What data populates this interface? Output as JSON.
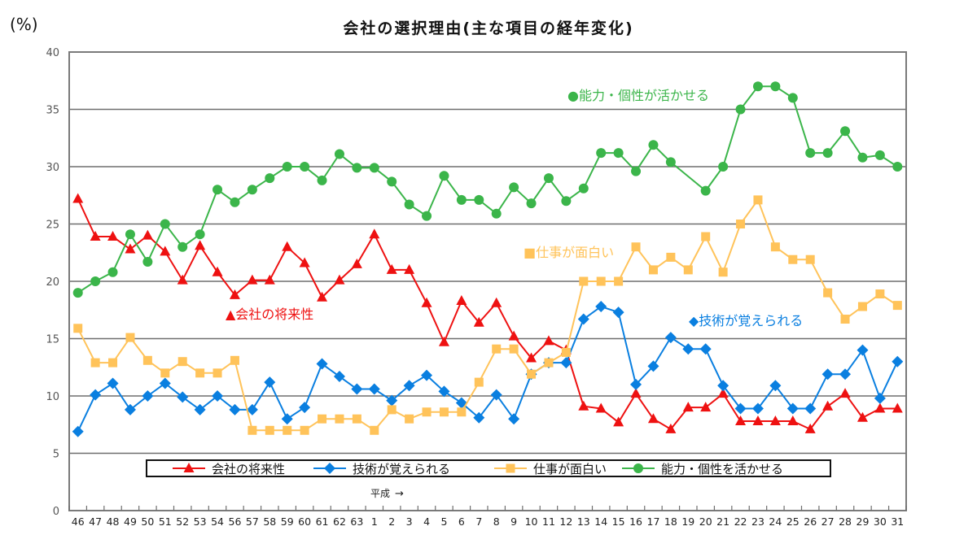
{
  "chart_data": {
    "type": "line",
    "title": "会社の選択理由(主な項目の経年変化)",
    "ylabel": "(%)",
    "xlabel": "",
    "era_note": "平成",
    "era_arrow": "→",
    "ylim": [
      0,
      40
    ],
    "yticks": [
      0,
      5,
      10,
      15,
      20,
      25,
      30,
      35,
      40
    ],
    "grid": true,
    "legend_position": "bottom-center",
    "categories": [
      "46",
      "47",
      "48",
      "49",
      "50",
      "51",
      "52",
      "53",
      "54",
      "56",
      "57",
      "58",
      "59",
      "60",
      "61",
      "62",
      "63",
      "1",
      "2",
      "3",
      "4",
      "5",
      "6",
      "7",
      "8",
      "9",
      "10",
      "11",
      "12",
      "13",
      "14",
      "15",
      "16",
      "17",
      "18",
      "19",
      "20",
      "21",
      "22",
      "23",
      "24",
      "25",
      "26",
      "27",
      "28",
      "29",
      "30",
      "31"
    ],
    "series": [
      {
        "name": "会社の将来性",
        "annotation": "▲会社の将来性",
        "color": "#ee1111",
        "marker": "triangle",
        "values": [
          27.2,
          23.9,
          23.9,
          22.8,
          24.0,
          22.6,
          20.1,
          23.1,
          20.8,
          18.8,
          20.1,
          20.1,
          23.0,
          21.6,
          18.6,
          20.1,
          21.5,
          24.1,
          21.0,
          21.0,
          18.1,
          14.7,
          18.3,
          16.4,
          18.1,
          15.2,
          13.3,
          14.8,
          14.0,
          9.1,
          8.9,
          7.7,
          10.2,
          8.0,
          7.1,
          9.0,
          9.0,
          10.2,
          7.8,
          7.8,
          7.8,
          7.8,
          7.1,
          9.1,
          10.2,
          8.1,
          8.9,
          8.9
        ]
      },
      {
        "name": "技術が覚えられる",
        "annotation": "◆技術が覚えられる",
        "color": "#0a7fe0",
        "marker": "diamond",
        "values": [
          6.9,
          10.1,
          11.1,
          8.8,
          10.0,
          11.1,
          9.9,
          8.8,
          10.0,
          8.8,
          8.8,
          11.2,
          8.0,
          9.0,
          12.8,
          11.7,
          10.6,
          10.6,
          9.6,
          10.9,
          11.8,
          10.4,
          9.4,
          8.1,
          10.1,
          8.0,
          11.9,
          12.9,
          12.9,
          16.7,
          17.8,
          17.3,
          11.0,
          12.6,
          15.1,
          14.1,
          14.1,
          10.9,
          8.9,
          8.9,
          10.9,
          8.9,
          8.9,
          11.9,
          11.9,
          14.0,
          9.8,
          13.0
        ]
      },
      {
        "name": "仕事が面白い",
        "annotation": "■仕事が面白い",
        "color": "#ffc35a",
        "marker": "square",
        "values": [
          15.9,
          12.9,
          12.9,
          15.1,
          13.1,
          12.0,
          13.0,
          12.0,
          12.0,
          13.1,
          7.0,
          7.0,
          7.0,
          7.0,
          8.0,
          8.0,
          8.0,
          7.0,
          8.8,
          8.0,
          8.6,
          8.6,
          8.6,
          11.2,
          14.1,
          14.1,
          11.9,
          12.9,
          13.8,
          20.0,
          20.0,
          20.0,
          23.0,
          21.0,
          22.1,
          21.0,
          23.9,
          20.8,
          25.0,
          27.1,
          23.0,
          21.9,
          21.9,
          19.0,
          16.7,
          17.8,
          18.9,
          17.9
        ]
      },
      {
        "name": "能力・個性を活かせる",
        "annotation": "●能力・個性が活かせる",
        "color": "#3bb54a",
        "marker": "circle",
        "values": [
          19.0,
          20.0,
          20.8,
          24.1,
          21.7,
          25.0,
          23.0,
          24.1,
          28.0,
          26.9,
          28.0,
          29.0,
          30.0,
          30.0,
          28.8,
          31.1,
          29.9,
          29.9,
          28.7,
          26.7,
          25.7,
          29.2,
          27.1,
          27.1,
          25.9,
          28.2,
          26.8,
          29.0,
          27.0,
          28.1,
          31.2,
          31.2,
          29.6,
          31.9,
          30.4,
          null,
          27.9,
          30.0,
          35.0,
          37.0,
          37.0,
          36.0,
          31.2,
          31.2,
          33.1,
          30.8,
          31.0,
          30.0
        ]
      }
    ]
  }
}
